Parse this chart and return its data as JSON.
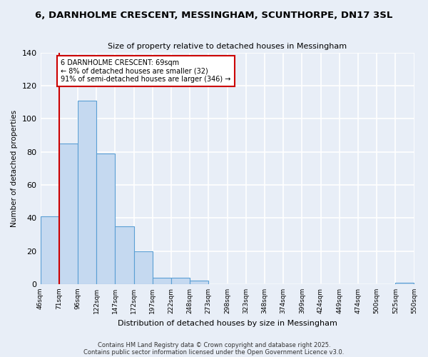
{
  "title": "6, DARNHOLME CRESCENT, MESSINGHAM, SCUNTHORPE, DN17 3SL",
  "subtitle": "Size of property relative to detached houses in Messingham",
  "xlabel": "Distribution of detached houses by size in Messingham",
  "ylabel": "Number of detached properties",
  "bar_values": [
    41,
    85,
    111,
    79,
    35,
    20,
    4,
    4,
    2,
    0,
    0,
    0,
    0,
    0,
    0,
    0,
    0,
    0,
    0,
    1
  ],
  "bin_labels": [
    "46sqm",
    "71sqm",
    "96sqm",
    "122sqm",
    "147sqm",
    "172sqm",
    "197sqm",
    "222sqm",
    "248sqm",
    "273sqm",
    "298sqm",
    "323sqm",
    "348sqm",
    "374sqm",
    "399sqm",
    "424sqm",
    "449sqm",
    "474sqm",
    "500sqm",
    "525sqm",
    "550sqm"
  ],
  "bar_color": "#c5d9f0",
  "bar_edge_color": "#5a9fd4",
  "background_color": "#e8eef7",
  "grid_color": "#ffffff",
  "ylim": [
    0,
    140
  ],
  "yticks": [
    0,
    20,
    40,
    60,
    80,
    100,
    120,
    140
  ],
  "vline_color": "#cc0000",
  "annotation_title": "6 DARNHOLME CRESCENT: 69sqm",
  "annotation_line1": "← 8% of detached houses are smaller (32)",
  "annotation_line2": "91% of semi-detached houses are larger (346) →",
  "annotation_box_color": "#ffffff",
  "annotation_box_edge": "#cc0000",
  "footer1": "Contains HM Land Registry data © Crown copyright and database right 2025.",
  "footer2": "Contains public sector information licensed under the Open Government Licence v3.0."
}
